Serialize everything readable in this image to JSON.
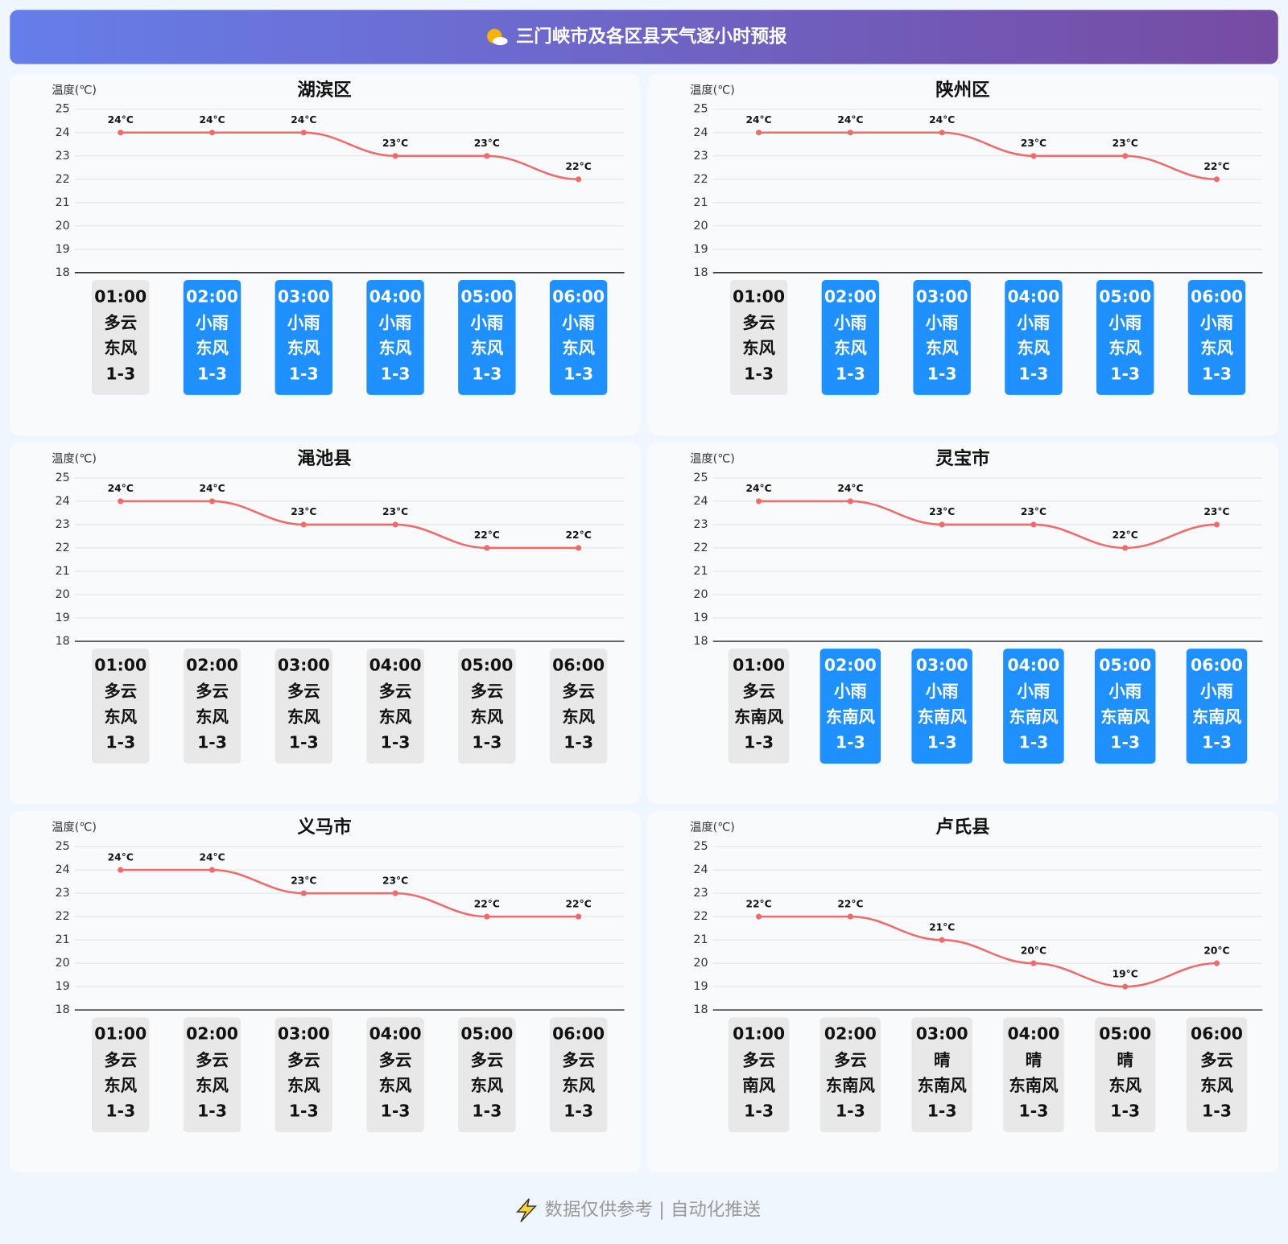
{
  "title": "三门峡市及各区县天气逐小时预报",
  "footer": "数据仅供参考 | 自动化推送",
  "chart_data": [
    {
      "type": "line",
      "title": "湖滨区",
      "y_label": "温度(℃)",
      "categories": [
        "01:00",
        "02:00",
        "03:00",
        "04:00",
        "05:00",
        "06:00"
      ],
      "values": [
        24,
        24,
        24,
        23,
        23,
        22
      ],
      "value_labels": [
        "24°C",
        "24°C",
        "24°C",
        "23°C",
        "23°C",
        "22°C"
      ],
      "weather": [
        "多云",
        "小雨",
        "小雨",
        "小雨",
        "小雨",
        "小雨"
      ],
      "wind": [
        "东风",
        "东风",
        "东风",
        "东风",
        "东风",
        "东风"
      ],
      "wind_level": [
        "1-3",
        "1-3",
        "1-3",
        "1-3",
        "1-3",
        "1-3"
      ],
      "box_colors": [
        "#e8e8e8",
        "#1e90ff",
        "#1e90ff",
        "#1e90ff",
        "#1e90ff",
        "#1e90ff"
      ],
      "color": "#ef6b6b",
      "ylim": [
        18,
        25
      ],
      "yticks": [
        18,
        19,
        20,
        21,
        22,
        23,
        24,
        25
      ],
      "grid": true
    },
    {
      "type": "line",
      "title": "陕州区",
      "y_label": "温度(℃)",
      "categories": [
        "01:00",
        "02:00",
        "03:00",
        "04:00",
        "05:00",
        "06:00"
      ],
      "values": [
        24,
        24,
        24,
        23,
        23,
        22
      ],
      "value_labels": [
        "24°C",
        "24°C",
        "24°C",
        "23°C",
        "23°C",
        "22°C"
      ],
      "weather": [
        "多云",
        "小雨",
        "小雨",
        "小雨",
        "小雨",
        "小雨"
      ],
      "wind": [
        "东风",
        "东风",
        "东风",
        "东风",
        "东风",
        "东风"
      ],
      "wind_level": [
        "1-3",
        "1-3",
        "1-3",
        "1-3",
        "1-3",
        "1-3"
      ],
      "box_colors": [
        "#e8e8e8",
        "#1e90ff",
        "#1e90ff",
        "#1e90ff",
        "#1e90ff",
        "#1e90ff"
      ],
      "color": "#ef6b6b",
      "ylim": [
        18,
        25
      ],
      "yticks": [
        18,
        19,
        20,
        21,
        22,
        23,
        24,
        25
      ],
      "grid": true
    },
    {
      "type": "line",
      "title": "渑池县",
      "y_label": "温度(℃)",
      "categories": [
        "01:00",
        "02:00",
        "03:00",
        "04:00",
        "05:00",
        "06:00"
      ],
      "values": [
        24,
        24,
        23,
        23,
        22,
        22
      ],
      "value_labels": [
        "24°C",
        "24°C",
        "23°C",
        "23°C",
        "22°C",
        "22°C"
      ],
      "weather": [
        "多云",
        "多云",
        "多云",
        "多云",
        "多云",
        "多云"
      ],
      "wind": [
        "东风",
        "东风",
        "东风",
        "东风",
        "东风",
        "东风"
      ],
      "wind_level": [
        "1-3",
        "1-3",
        "1-3",
        "1-3",
        "1-3",
        "1-3"
      ],
      "box_colors": [
        "#e8e8e8",
        "#e8e8e8",
        "#e8e8e8",
        "#e8e8e8",
        "#e8e8e8",
        "#e8e8e8"
      ],
      "color": "#ef6b6b",
      "ylim": [
        18,
        25
      ],
      "yticks": [
        18,
        19,
        20,
        21,
        22,
        23,
        24,
        25
      ],
      "grid": true
    },
    {
      "type": "line",
      "title": "灵宝市",
      "y_label": "温度(℃)",
      "categories": [
        "01:00",
        "02:00",
        "03:00",
        "04:00",
        "05:00",
        "06:00"
      ],
      "values": [
        24,
        24,
        23,
        23,
        22,
        23
      ],
      "value_labels": [
        "24°C",
        "24°C",
        "23°C",
        "23°C",
        "22°C",
        "23°C"
      ],
      "weather": [
        "多云",
        "小雨",
        "小雨",
        "小雨",
        "小雨",
        "小雨"
      ],
      "wind": [
        "东南风",
        "东南风",
        "东南风",
        "东南风",
        "东南风",
        "东南风"
      ],
      "wind_level": [
        "1-3",
        "1-3",
        "1-3",
        "1-3",
        "1-3",
        "1-3"
      ],
      "box_colors": [
        "#e8e8e8",
        "#1e90ff",
        "#1e90ff",
        "#1e90ff",
        "#1e90ff",
        "#1e90ff"
      ],
      "color": "#ef6b6b",
      "ylim": [
        18,
        25
      ],
      "yticks": [
        18,
        19,
        20,
        21,
        22,
        23,
        24,
        25
      ],
      "grid": true
    },
    {
      "type": "line",
      "title": "义马市",
      "y_label": "温度(℃)",
      "categories": [
        "01:00",
        "02:00",
        "03:00",
        "04:00",
        "05:00",
        "06:00"
      ],
      "values": [
        24,
        24,
        23,
        23,
        22,
        22
      ],
      "value_labels": [
        "24°C",
        "24°C",
        "23°C",
        "23°C",
        "22°C",
        "22°C"
      ],
      "weather": [
        "多云",
        "多云",
        "多云",
        "多云",
        "多云",
        "多云"
      ],
      "wind": [
        "东风",
        "东风",
        "东风",
        "东风",
        "东风",
        "东风"
      ],
      "wind_level": [
        "1-3",
        "1-3",
        "1-3",
        "1-3",
        "1-3",
        "1-3"
      ],
      "box_colors": [
        "#e8e8e8",
        "#e8e8e8",
        "#e8e8e8",
        "#e8e8e8",
        "#e8e8e8",
        "#e8e8e8"
      ],
      "color": "#ef6b6b",
      "ylim": [
        18,
        25
      ],
      "yticks": [
        18,
        19,
        20,
        21,
        22,
        23,
        24,
        25
      ],
      "grid": true
    },
    {
      "type": "line",
      "title": "卢氏县",
      "y_label": "温度(℃)",
      "categories": [
        "01:00",
        "02:00",
        "03:00",
        "04:00",
        "05:00",
        "06:00"
      ],
      "values": [
        22,
        22,
        21,
        20,
        19,
        20
      ],
      "value_labels": [
        "22°C",
        "22°C",
        "21°C",
        "20°C",
        "19°C",
        "20°C"
      ],
      "weather": [
        "多云",
        "多云",
        "晴",
        "晴",
        "晴",
        "多云"
      ],
      "wind": [
        "南风",
        "东南风",
        "东南风",
        "东南风",
        "东风",
        "东风"
      ],
      "wind_level": [
        "1-3",
        "1-3",
        "1-3",
        "1-3",
        "1-3",
        "1-3"
      ],
      "box_colors": [
        "#e8e8e8",
        "#e8e8e8",
        "#e8e8e8",
        "#e8e8e8",
        "#e8e8e8",
        "#e8e8e8"
      ],
      "color": "#ef6b6b",
      "ylim": [
        18,
        25
      ],
      "yticks": [
        18,
        19,
        20,
        21,
        22,
        23,
        24,
        25
      ],
      "grid": true
    }
  ]
}
